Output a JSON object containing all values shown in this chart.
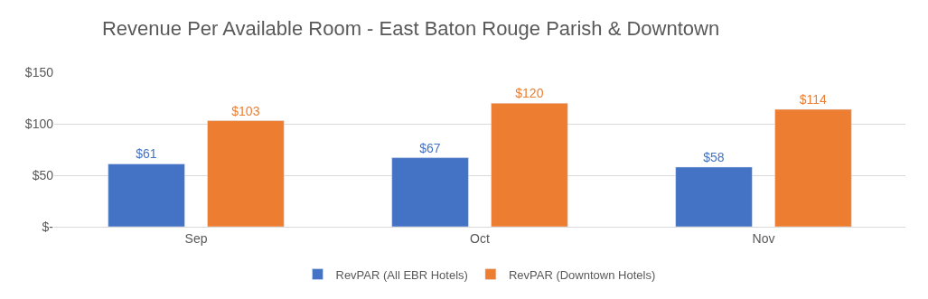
{
  "chart_data": {
    "type": "bar",
    "title": "Revenue Per Available Room - East Baton Rouge Parish & Downtown",
    "categories": [
      "Sep",
      "Oct",
      "Nov"
    ],
    "series": [
      {
        "name": "RevPAR (All EBR Hotels)",
        "color": "#4472c4",
        "values": [
          61,
          67,
          58
        ],
        "value_labels": [
          "$61",
          "$67",
          "$58"
        ]
      },
      {
        "name": "RevPAR (Downtown Hotels)",
        "color": "#ed7d31",
        "values": [
          103,
          120,
          114
        ],
        "value_labels": [
          "$103",
          "$120",
          "$114"
        ]
      }
    ],
    "ylim": [
      0,
      150
    ],
    "yticks": [
      {
        "value": 0,
        "label": "$-"
      },
      {
        "value": 50,
        "label": "$50"
      },
      {
        "value": 100,
        "label": "$100"
      },
      {
        "value": 150,
        "label": "$150"
      }
    ],
    "grid": "y",
    "legend": "bottom"
  }
}
